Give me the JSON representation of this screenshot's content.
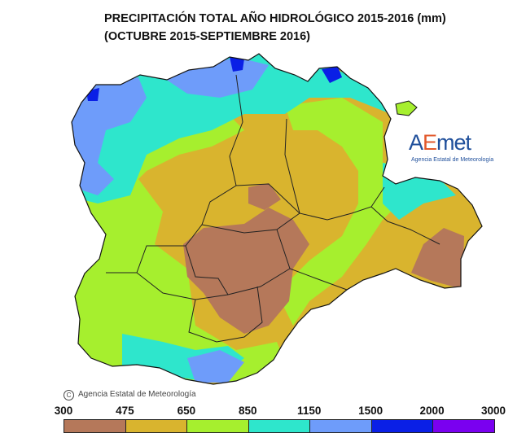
{
  "title": {
    "line1": "PRECIPITACIÓN TOTAL AÑO HIDROLÓGICO 2015-2016 (mm)",
    "line2": "(OCTUBRE 2015-SEPTIEMBRE 2016)"
  },
  "logo": {
    "prefix": "AE",
    "suffix": "met",
    "subtitle": "Agencia Estatal de Meteorología"
  },
  "copyright": {
    "symbol": "C",
    "text": "Agencia Estatal de Meteorología"
  },
  "legend": {
    "breaks": [
      "300",
      "475",
      "650",
      "850",
      "1150",
      "1500",
      "2000",
      "3000"
    ],
    "colors": [
      "#b5785a",
      "#d9b42e",
      "#a6ef2e",
      "#2ee6cc",
      "#6e9cfa",
      "#0a1fe6",
      "#7a00f0"
    ]
  },
  "map_colors": {
    "dry": "#b5785a",
    "low": "#d9b42e",
    "mid": "#a6ef2e",
    "wet": "#2ee6cc",
    "very_wet": "#6e9cfa",
    "extreme": "#0a1fe6",
    "max": "#7a00f0"
  }
}
